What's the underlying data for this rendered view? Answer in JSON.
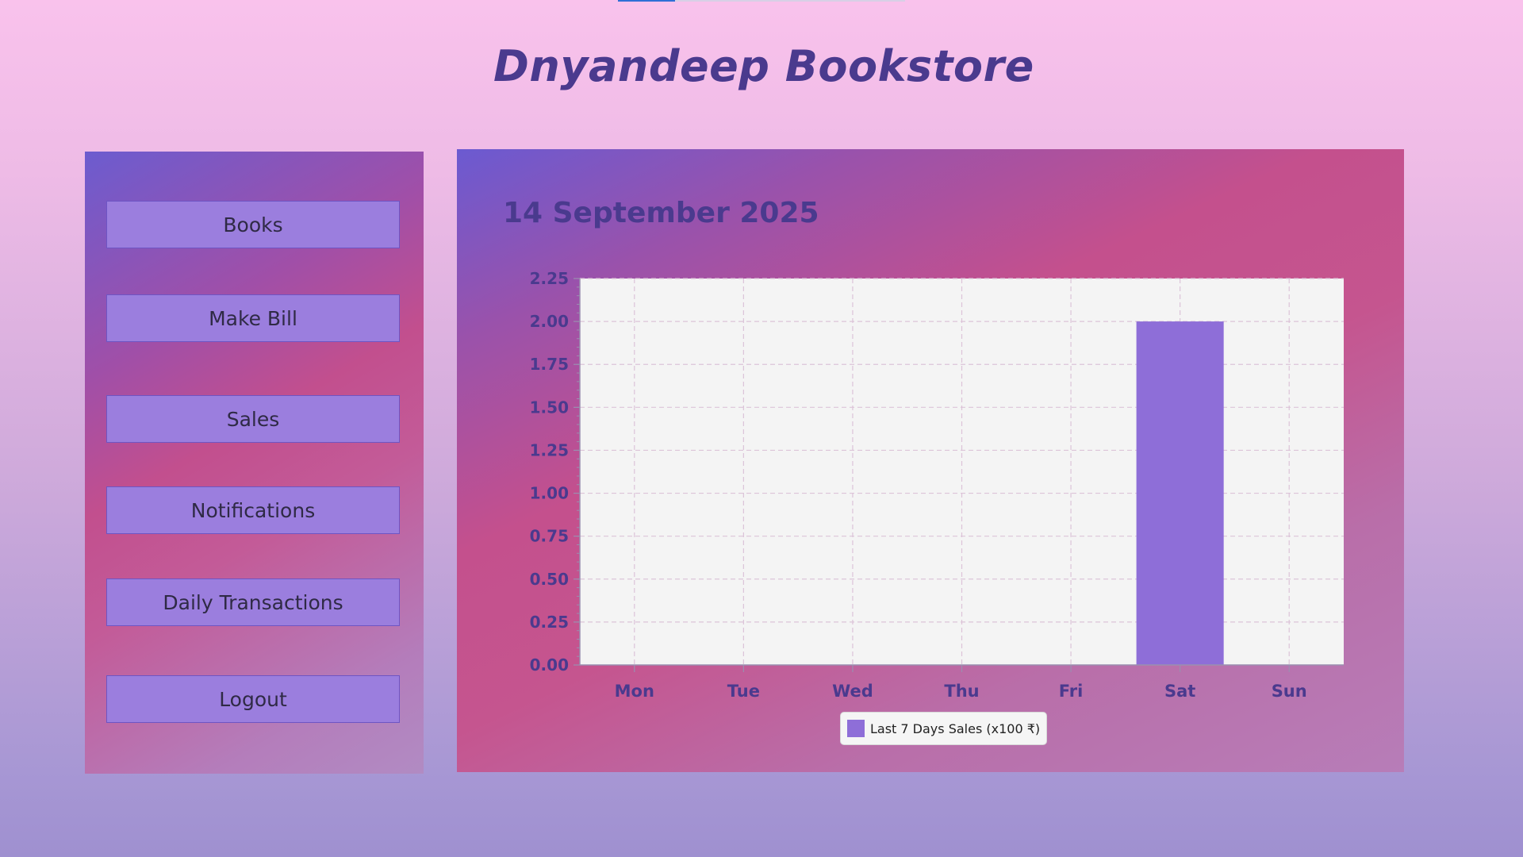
{
  "app": {
    "title": "Dnyandeep Bookstore"
  },
  "sidebar": {
    "items": [
      {
        "label": "Books"
      },
      {
        "label": "Make Bill"
      },
      {
        "label": "Sales"
      },
      {
        "label": "Notifications"
      },
      {
        "label": "Daily Transactions"
      },
      {
        "label": "Logout"
      }
    ]
  },
  "main": {
    "date": "14 September 2025"
  },
  "colors": {
    "title": "#4a3a8e",
    "button": "#9b7ede",
    "bar": "#8e6ed8",
    "plot_bg": "#f4f4f4"
  },
  "chart_data": {
    "type": "bar",
    "categories": [
      "Mon",
      "Tue",
      "Wed",
      "Thu",
      "Fri",
      "Sat",
      "Sun"
    ],
    "series": [
      {
        "name": "Last 7 Days Sales (x100 ₹)",
        "values": [
          0,
          0,
          0,
          0,
          0,
          2.0,
          0
        ]
      }
    ],
    "ylim": [
      0,
      2.25
    ],
    "yticks": [
      "0.00",
      "0.25",
      "0.50",
      "0.75",
      "1.00",
      "1.25",
      "1.50",
      "1.75",
      "2.00",
      "2.25"
    ],
    "grid": true,
    "legend": "bottom-center"
  }
}
